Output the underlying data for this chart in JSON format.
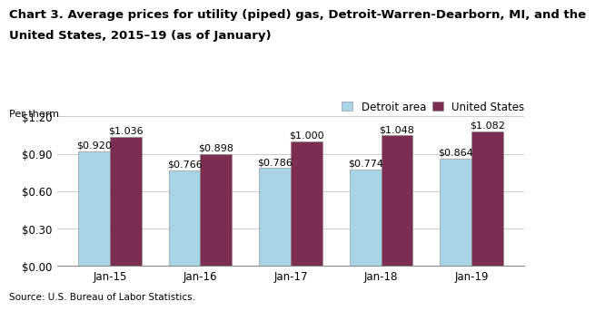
{
  "title_line1": "Chart 3. Average prices for utility (piped) gas, Detroit-Warren-Dearborn, MI, and the",
  "title_line2": "United States, 2015–19 (as of January)",
  "per_therm_label": "Per therm",
  "source": "Source: U.S. Bureau of Labor Statistics.",
  "categories": [
    "Jan-15",
    "Jan-16",
    "Jan-17",
    "Jan-18",
    "Jan-19"
  ],
  "detroit_values": [
    0.92,
    0.766,
    0.786,
    0.774,
    0.864
  ],
  "us_values": [
    1.036,
    0.898,
    1.0,
    1.048,
    1.082
  ],
  "detroit_color": "#a8d4e6",
  "us_color": "#7B2D52",
  "ylim": [
    0.0,
    1.2
  ],
  "yticks": [
    0.0,
    0.3,
    0.6,
    0.9,
    1.2
  ],
  "legend_detroit": "Detroit area",
  "legend_us": "United States",
  "bar_width": 0.35,
  "title_fontsize": 9.5,
  "label_fontsize": 8,
  "tick_fontsize": 8.5,
  "source_fontsize": 7.5,
  "legend_fontsize": 8.5,
  "pertherm_fontsize": 8
}
